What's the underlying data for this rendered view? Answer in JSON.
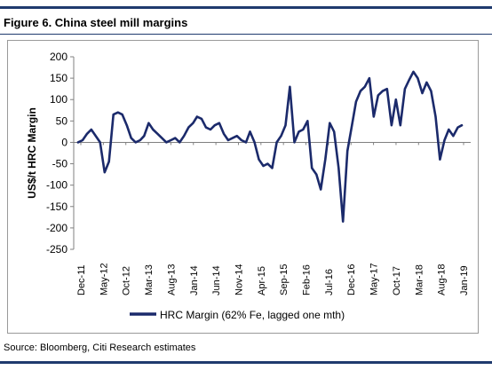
{
  "figure_title": "Figure 6. China steel mill margins",
  "source_note": "Source: Bloomberg, Citi Research estimates",
  "colors": {
    "series": "#1b2a6b",
    "rule": "#1f3a6e",
    "axis": "#808080"
  },
  "chart_data": {
    "type": "line",
    "title": "",
    "xlabel": "",
    "ylabel": "US$/t HRC Margin",
    "ylim": [
      -250,
      200
    ],
    "yticks": [
      200,
      150,
      100,
      50,
      0,
      -50,
      -100,
      -150,
      -200,
      -250
    ],
    "xticks": [
      "Dec-11",
      "May-12",
      "Oct-12",
      "Mar-13",
      "Aug-13",
      "Jan-14",
      "Jun-14",
      "Nov-14",
      "Apr-15",
      "Sep-15",
      "Feb-16",
      "Jul-16",
      "Dec-16",
      "May-17",
      "Oct-17",
      "Mar-18",
      "Aug-18",
      "Jan-19"
    ],
    "grid": false,
    "legend": "bottom",
    "series": [
      {
        "name": "HRC Margin (62% Fe, lagged one mth)",
        "color": "#1b2a6b",
        "x": [
          "2011-12-01",
          "2012-01-01",
          "2012-02-01",
          "2012-03-01",
          "2012-04-01",
          "2012-05-01",
          "2012-06-01",
          "2012-07-01",
          "2012-08-01",
          "2012-09-01",
          "2012-10-01",
          "2012-11-01",
          "2012-12-01",
          "2013-01-01",
          "2013-02-01",
          "2013-03-01",
          "2013-04-01",
          "2013-05-01",
          "2013-06-01",
          "2013-07-01",
          "2013-08-01",
          "2013-09-01",
          "2013-10-01",
          "2013-11-01",
          "2013-12-01",
          "2014-01-01",
          "2014-02-01",
          "2014-03-01",
          "2014-04-01",
          "2014-05-01",
          "2014-06-01",
          "2014-07-01",
          "2014-08-01",
          "2014-09-01",
          "2014-10-01",
          "2014-11-01",
          "2014-12-01",
          "2015-01-01",
          "2015-02-01",
          "2015-03-01",
          "2015-04-01",
          "2015-05-01",
          "2015-06-01",
          "2015-07-01",
          "2015-08-01",
          "2015-09-01",
          "2015-10-01",
          "2015-11-01",
          "2015-12-01",
          "2016-01-01",
          "2016-02-01",
          "2016-03-01",
          "2016-04-01",
          "2016-05-01",
          "2016-06-01",
          "2016-07-01",
          "2016-08-01",
          "2016-09-01",
          "2016-10-01",
          "2016-11-01",
          "2016-12-01",
          "2017-01-01",
          "2017-02-01",
          "2017-03-01",
          "2017-04-01",
          "2017-05-01",
          "2017-06-01",
          "2017-07-01",
          "2017-08-01",
          "2017-09-01",
          "2017-10-01",
          "2017-11-01",
          "2017-12-01",
          "2018-01-01",
          "2018-02-01",
          "2018-03-01",
          "2018-04-01",
          "2018-05-01",
          "2018-06-01",
          "2018-07-01",
          "2018-08-01",
          "2018-09-01",
          "2018-10-01",
          "2018-11-01",
          "2018-12-01",
          "2019-01-01",
          "2019-02-01",
          "2019-03-01"
        ],
        "values": [
          0,
          5,
          20,
          30,
          15,
          0,
          -70,
          -45,
          65,
          70,
          65,
          40,
          10,
          0,
          5,
          15,
          45,
          30,
          20,
          10,
          0,
          5,
          10,
          0,
          15,
          35,
          45,
          60,
          55,
          35,
          30,
          40,
          45,
          20,
          5,
          10,
          15,
          5,
          0,
          25,
          0,
          -40,
          -55,
          -50,
          -60,
          0,
          15,
          40,
          130,
          0,
          25,
          30,
          50,
          -60,
          -75,
          -110,
          -40,
          45,
          25,
          -60,
          -185,
          -20,
          40,
          95,
          120,
          130,
          150,
          60,
          110,
          120,
          125,
          40,
          100,
          40,
          125,
          145,
          165,
          150,
          115,
          140,
          120,
          60,
          -40,
          5,
          30,
          15,
          35,
          40
        ]
      }
    ]
  }
}
